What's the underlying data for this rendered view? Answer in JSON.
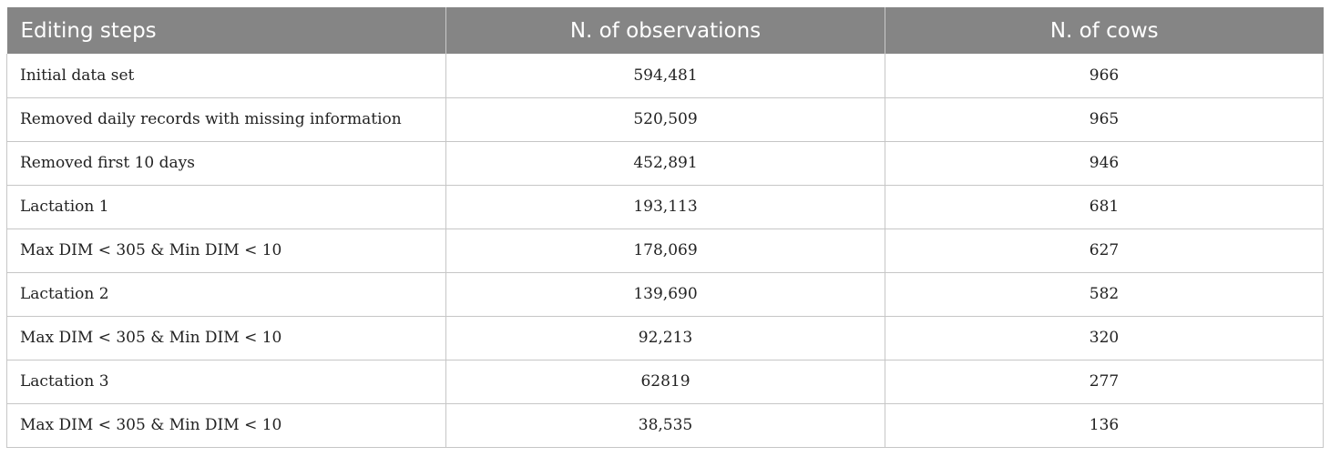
{
  "table": {
    "headers": [
      "Editing steps",
      "N. of observations",
      "N. of cows"
    ],
    "rows": [
      {
        "step": "Initial data set",
        "observations": "594,481",
        "cows": "966"
      },
      {
        "step": "Removed daily records with missing information",
        "observations": "520,509",
        "cows": "965"
      },
      {
        "step": "Removed first 10 days",
        "observations": "452,891",
        "cows": "946"
      },
      {
        "step": "Lactation 1",
        "observations": "193,113",
        "cows": "681"
      },
      {
        "step": "Max DIM < 305 & Min DIM < 10",
        "observations": "178,069",
        "cows": "627"
      },
      {
        "step": "Lactation 2",
        "observations": "139,690",
        "cows": "582"
      },
      {
        "step": "Max DIM < 305 & Min DIM < 10",
        "observations": "92,213",
        "cows": "320"
      },
      {
        "step": "Lactation 3",
        "observations": "62819",
        "cows": "277"
      },
      {
        "step": "Max DIM < 305 & Min DIM < 10",
        "observations": "38,535",
        "cows": "136"
      }
    ]
  },
  "colors": {
    "header_background": "#858585",
    "header_text": "#ffffff",
    "border": "#c6c6c6"
  }
}
